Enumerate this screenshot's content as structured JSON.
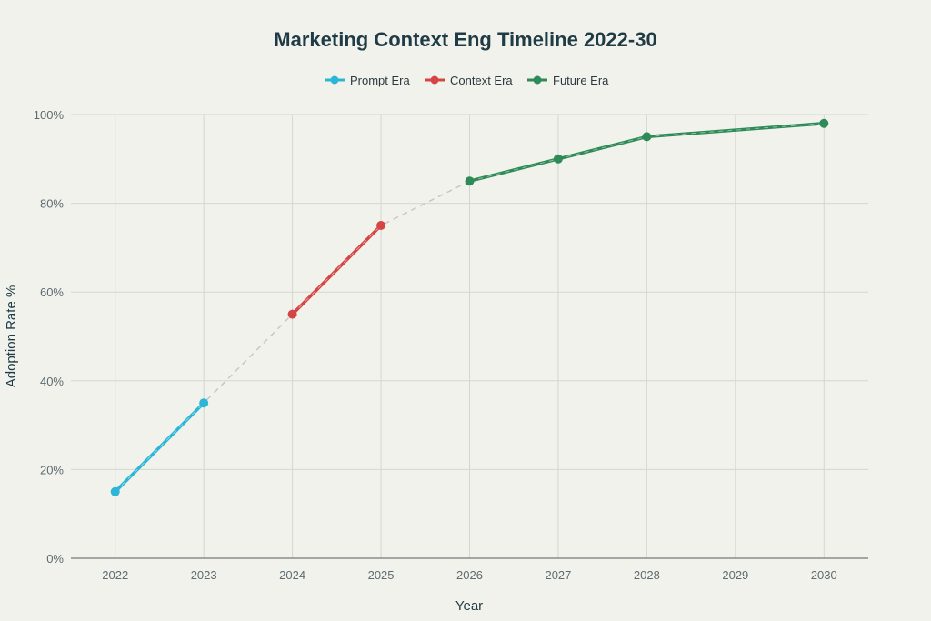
{
  "chart_data": {
    "type": "line",
    "title": "Marketing Context Eng Timeline 2022-30",
    "xlabel": "Year",
    "ylabel": "Adoption Rate %",
    "x": [
      2022,
      2023,
      2024,
      2025,
      2026,
      2027,
      2028,
      2029,
      2030
    ],
    "xlim": [
      2021.5,
      2030.5
    ],
    "ylim": [
      0,
      100
    ],
    "yticks": [
      0,
      20,
      40,
      60,
      80,
      100
    ],
    "ytick_format": "%",
    "grid": true,
    "legend_position": "top-center",
    "series": [
      {
        "name": "Prompt Era",
        "color": "#2bb5d6",
        "x": [
          2022,
          2023
        ],
        "values": [
          15,
          35
        ]
      },
      {
        "name": "Context Era",
        "color": "#d64545",
        "x": [
          2024,
          2025
        ],
        "values": [
          55,
          75
        ]
      },
      {
        "name": "Future Era",
        "color": "#2e8b57",
        "x": [
          2026,
          2027,
          2028,
          2030
        ],
        "values": [
          85,
          90,
          95,
          98
        ]
      }
    ],
    "connector": {
      "color": "#c8c8c2",
      "x": [
        2022,
        2023,
        2024,
        2025,
        2026,
        2027,
        2028,
        2030
      ],
      "values": [
        15,
        35,
        55,
        75,
        85,
        90,
        95,
        98
      ]
    }
  }
}
